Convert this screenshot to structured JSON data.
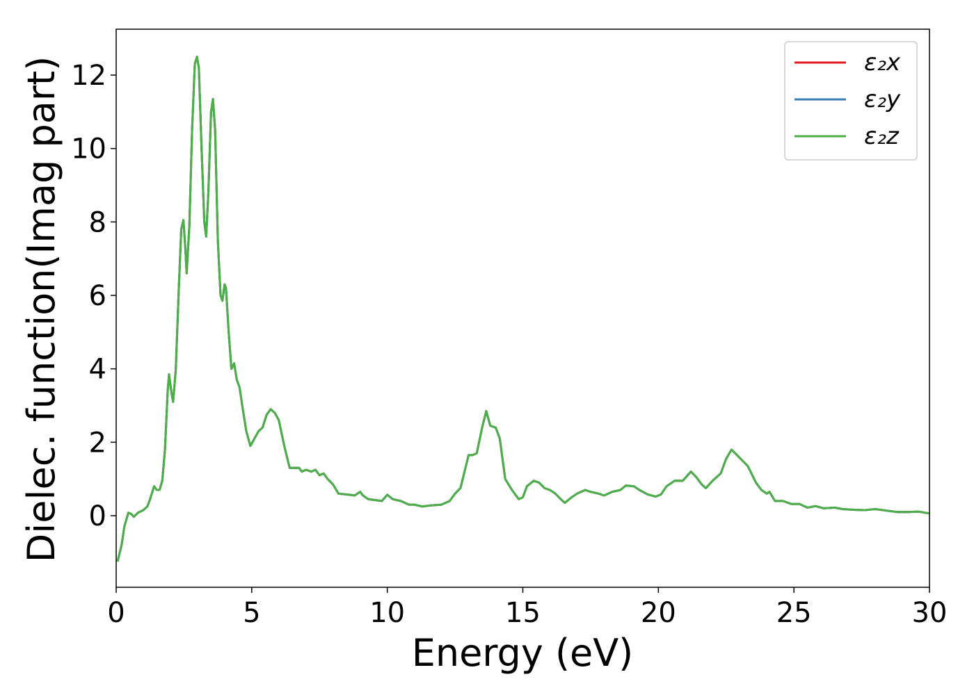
{
  "chart_data": {
    "type": "line",
    "x_label": "Energy (eV)",
    "y_label": "Dielec. function(Imag part)",
    "xlim": [
      0,
      30
    ],
    "xticks": [
      0,
      5,
      10,
      15,
      20,
      25,
      30
    ],
    "ylim": [
      -1.95,
      13.25
    ],
    "yticks": [
      0,
      2,
      4,
      6,
      8,
      10,
      12
    ],
    "legend": "upper right",
    "x": [
      0.05,
      0.2,
      0.3,
      0.45,
      0.55,
      0.65,
      0.8,
      1.0,
      1.15,
      1.25,
      1.4,
      1.5,
      1.6,
      1.7,
      1.8,
      1.9,
      1.95,
      2.05,
      2.1,
      2.2,
      2.3,
      2.4,
      2.48,
      2.55,
      2.6,
      2.7,
      2.8,
      2.9,
      2.98,
      3.05,
      3.15,
      3.25,
      3.32,
      3.4,
      3.5,
      3.57,
      3.65,
      3.75,
      3.85,
      3.92,
      4.0,
      4.05,
      4.15,
      4.25,
      4.35,
      4.45,
      4.55,
      4.65,
      4.8,
      4.95,
      5.1,
      5.25,
      5.4,
      5.55,
      5.7,
      5.85,
      6.0,
      6.2,
      6.4,
      6.6,
      6.75,
      6.85,
      7.0,
      7.2,
      7.35,
      7.5,
      7.65,
      7.8,
      8.0,
      8.2,
      8.6,
      8.8,
      9.0,
      9.1,
      9.3,
      9.6,
      9.8,
      10.0,
      10.2,
      10.5,
      10.8,
      11.0,
      11.3,
      11.6,
      12.0,
      12.3,
      12.5,
      12.7,
      12.85,
      13.0,
      13.15,
      13.3,
      13.5,
      13.65,
      13.8,
      14.0,
      14.15,
      14.35,
      14.6,
      14.85,
      15.0,
      15.15,
      15.4,
      15.6,
      15.8,
      16.0,
      16.2,
      16.4,
      16.55,
      16.8,
      17.0,
      17.3,
      17.5,
      17.8,
      18.0,
      18.3,
      18.6,
      18.8,
      19.1,
      19.3,
      19.6,
      19.9,
      20.1,
      20.3,
      20.6,
      20.9,
      21.2,
      21.4,
      21.6,
      21.75,
      22.0,
      22.3,
      22.5,
      22.7,
      22.9,
      23.1,
      23.3,
      23.6,
      23.8,
      24.0,
      24.1,
      24.3,
      24.6,
      24.9,
      25.2,
      25.5,
      25.8,
      26.1,
      26.5,
      26.8,
      27.2,
      27.6,
      28.0,
      28.4,
      28.8,
      29.2,
      29.6,
      30.0
    ],
    "series": [
      {
        "name": "ε₂x",
        "color": "#e41a1c",
        "values": [
          -1.25,
          -0.8,
          -0.3,
          0.08,
          0.05,
          -0.03,
          0.08,
          0.15,
          0.25,
          0.45,
          0.8,
          0.7,
          0.7,
          0.95,
          1.8,
          3.4,
          3.85,
          3.3,
          3.1,
          4.0,
          6.0,
          7.8,
          8.05,
          7.3,
          6.6,
          7.9,
          10.5,
          12.3,
          12.5,
          12.2,
          10.0,
          8.0,
          7.6,
          8.8,
          11.0,
          11.35,
          10.5,
          7.5,
          6.0,
          5.85,
          6.3,
          6.2,
          5.0,
          4.0,
          4.15,
          3.7,
          3.5,
          3.0,
          2.3,
          1.9,
          2.1,
          2.3,
          2.4,
          2.75,
          2.9,
          2.8,
          2.6,
          1.9,
          1.3,
          1.3,
          1.3,
          1.2,
          1.25,
          1.2,
          1.25,
          1.1,
          1.15,
          1.0,
          0.85,
          0.6,
          0.57,
          0.55,
          0.65,
          0.55,
          0.45,
          0.42,
          0.4,
          0.57,
          0.45,
          0.4,
          0.3,
          0.3,
          0.25,
          0.28,
          0.3,
          0.4,
          0.6,
          0.75,
          1.2,
          1.65,
          1.65,
          1.7,
          2.4,
          2.85,
          2.45,
          2.4,
          2.1,
          1.0,
          0.7,
          0.45,
          0.5,
          0.8,
          0.95,
          0.9,
          0.75,
          0.7,
          0.6,
          0.45,
          0.35,
          0.5,
          0.6,
          0.7,
          0.65,
          0.6,
          0.55,
          0.65,
          0.7,
          0.82,
          0.8,
          0.7,
          0.58,
          0.52,
          0.58,
          0.8,
          0.95,
          0.95,
          1.2,
          1.05,
          0.85,
          0.75,
          0.95,
          1.15,
          1.55,
          1.8,
          1.65,
          1.5,
          1.35,
          0.9,
          0.7,
          0.6,
          0.65,
          0.4,
          0.4,
          0.32,
          0.32,
          0.22,
          0.26,
          0.2,
          0.22,
          0.18,
          0.16,
          0.15,
          0.18,
          0.14,
          0.1,
          0.1,
          0.11,
          0.06
        ]
      },
      {
        "name": "ε₂y",
        "color": "#377eb8",
        "values": [
          -1.25,
          -0.8,
          -0.3,
          0.08,
          0.05,
          -0.03,
          0.08,
          0.15,
          0.25,
          0.45,
          0.8,
          0.7,
          0.7,
          0.95,
          1.8,
          3.4,
          3.85,
          3.3,
          3.1,
          4.0,
          6.0,
          7.8,
          8.05,
          7.3,
          6.6,
          7.9,
          10.5,
          12.3,
          12.5,
          12.2,
          10.0,
          8.0,
          7.6,
          8.8,
          11.0,
          11.35,
          10.5,
          7.5,
          6.0,
          5.85,
          6.3,
          6.2,
          5.0,
          4.0,
          4.15,
          3.7,
          3.5,
          3.0,
          2.3,
          1.9,
          2.1,
          2.3,
          2.4,
          2.75,
          2.9,
          2.8,
          2.6,
          1.9,
          1.3,
          1.3,
          1.3,
          1.2,
          1.25,
          1.2,
          1.25,
          1.1,
          1.15,
          1.0,
          0.85,
          0.6,
          0.57,
          0.55,
          0.65,
          0.55,
          0.45,
          0.42,
          0.4,
          0.57,
          0.45,
          0.4,
          0.3,
          0.3,
          0.25,
          0.28,
          0.3,
          0.4,
          0.6,
          0.75,
          1.2,
          1.65,
          1.65,
          1.7,
          2.4,
          2.85,
          2.45,
          2.4,
          2.1,
          1.0,
          0.7,
          0.45,
          0.5,
          0.8,
          0.95,
          0.9,
          0.75,
          0.7,
          0.6,
          0.45,
          0.35,
          0.5,
          0.6,
          0.7,
          0.65,
          0.6,
          0.55,
          0.65,
          0.7,
          0.82,
          0.8,
          0.7,
          0.58,
          0.52,
          0.58,
          0.8,
          0.95,
          0.95,
          1.2,
          1.05,
          0.85,
          0.75,
          0.95,
          1.15,
          1.55,
          1.8,
          1.65,
          1.5,
          1.35,
          0.9,
          0.7,
          0.6,
          0.65,
          0.4,
          0.4,
          0.32,
          0.32,
          0.22,
          0.26,
          0.2,
          0.22,
          0.18,
          0.16,
          0.15,
          0.18,
          0.14,
          0.1,
          0.1,
          0.11,
          0.06
        ]
      },
      {
        "name": "ε₂z",
        "color": "#4daf4a",
        "values": [
          -1.25,
          -0.8,
          -0.3,
          0.08,
          0.05,
          -0.03,
          0.08,
          0.15,
          0.25,
          0.45,
          0.8,
          0.7,
          0.7,
          0.95,
          1.8,
          3.4,
          3.85,
          3.3,
          3.1,
          4.0,
          6.0,
          7.8,
          8.05,
          7.3,
          6.6,
          7.9,
          10.5,
          12.3,
          12.5,
          12.2,
          10.0,
          8.0,
          7.6,
          8.8,
          11.0,
          11.35,
          10.5,
          7.5,
          6.0,
          5.85,
          6.3,
          6.2,
          5.0,
          4.0,
          4.15,
          3.7,
          3.5,
          3.0,
          2.3,
          1.9,
          2.1,
          2.3,
          2.4,
          2.75,
          2.9,
          2.8,
          2.6,
          1.9,
          1.3,
          1.3,
          1.3,
          1.2,
          1.25,
          1.2,
          1.25,
          1.1,
          1.15,
          1.0,
          0.85,
          0.6,
          0.57,
          0.55,
          0.65,
          0.55,
          0.45,
          0.42,
          0.4,
          0.57,
          0.45,
          0.4,
          0.3,
          0.3,
          0.25,
          0.28,
          0.3,
          0.4,
          0.6,
          0.75,
          1.2,
          1.65,
          1.65,
          1.7,
          2.4,
          2.85,
          2.45,
          2.4,
          2.1,
          1.0,
          0.7,
          0.45,
          0.5,
          0.8,
          0.95,
          0.9,
          0.75,
          0.7,
          0.6,
          0.45,
          0.35,
          0.5,
          0.6,
          0.7,
          0.65,
          0.6,
          0.55,
          0.65,
          0.7,
          0.82,
          0.8,
          0.7,
          0.58,
          0.52,
          0.58,
          0.8,
          0.95,
          0.95,
          1.2,
          1.05,
          0.85,
          0.75,
          0.95,
          1.15,
          1.55,
          1.8,
          1.65,
          1.5,
          1.35,
          0.9,
          0.7,
          0.6,
          0.65,
          0.4,
          0.4,
          0.32,
          0.32,
          0.22,
          0.26,
          0.2,
          0.22,
          0.18,
          0.16,
          0.15,
          0.18,
          0.14,
          0.1,
          0.1,
          0.11,
          0.06
        ]
      }
    ]
  }
}
